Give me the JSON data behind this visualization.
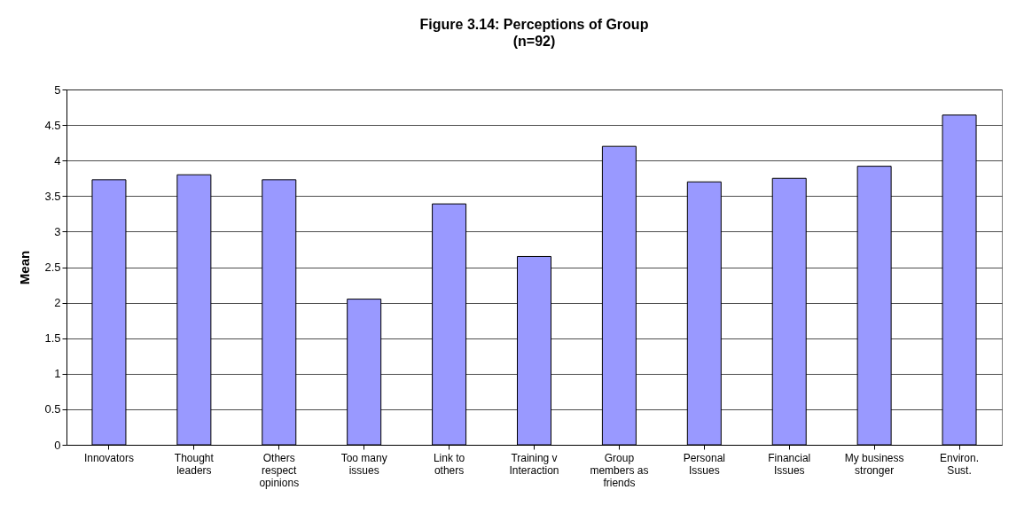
{
  "chart_data": {
    "type": "bar",
    "title": "Figure 3.14:  Perceptions of Group",
    "subtitle": "(n=92)",
    "ylabel": "Mean",
    "categories": [
      "Innovators",
      "Thought leaders",
      "Others respect opinions",
      "Too many issues",
      "Link to others",
      "Training v Interaction",
      "Group members as friends",
      "Personal Issues",
      "Financial Issues",
      "My business stronger",
      "Environ. Sust."
    ],
    "values": [
      3.73,
      3.8,
      3.73,
      2.05,
      3.39,
      2.65,
      4.2,
      3.7,
      3.75,
      3.92,
      4.64
    ],
    "color": "#9999ff",
    "ylim": [
      0,
      5
    ],
    "yticks": [
      0,
      0.5,
      1,
      1.5,
      2,
      2.5,
      3,
      3.5,
      4,
      4.5,
      5
    ],
    "grid": "y"
  }
}
